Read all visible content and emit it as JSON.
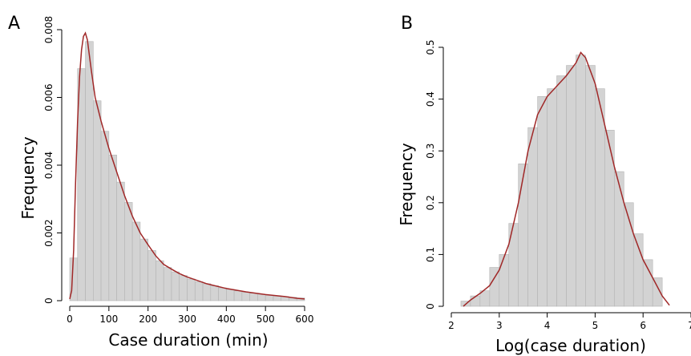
{
  "chart_data": [
    {
      "type": "bar",
      "panel_label": "A",
      "xlabel": "Case duration (min)",
      "ylabel": "Frequency",
      "xlim": [
        0,
        600
      ],
      "ylim": [
        0,
        0.008
      ],
      "x_ticks": [
        0,
        100,
        200,
        300,
        400,
        500,
        600
      ],
      "y_ticks": [
        0,
        0.002,
        0.004,
        0.006,
        0.008
      ],
      "y_tick_labels": [
        "0",
        "0.002",
        "0.004",
        "0.006",
        "0.008"
      ],
      "bin_width": 20,
      "bins_start": 0,
      "values": [
        0.00126,
        0.00685,
        0.00765,
        0.0059,
        0.005,
        0.0043,
        0.0035,
        0.0029,
        0.00232,
        0.00182,
        0.00148,
        0.00118,
        0.00098,
        0.00085,
        0.00074,
        0.00064,
        0.00056,
        0.0005,
        0.00044,
        0.00038,
        0.00033,
        0.00029,
        0.00025,
        0.00022,
        0.00019,
        0.00016,
        0.00014,
        0.00012,
        0.0001,
        8e-05
      ],
      "density_color": "#a02828",
      "density": [
        [
          0,
          5e-05
        ],
        [
          5,
          0.0003
        ],
        [
          10,
          0.0015
        ],
        [
          15,
          0.0035
        ],
        [
          20,
          0.0053
        ],
        [
          25,
          0.0066
        ],
        [
          30,
          0.0074
        ],
        [
          35,
          0.0078
        ],
        [
          40,
          0.0079
        ],
        [
          45,
          0.0077
        ],
        [
          55,
          0.0068
        ],
        [
          65,
          0.006
        ],
        [
          80,
          0.0053
        ],
        [
          100,
          0.0045
        ],
        [
          120,
          0.0038
        ],
        [
          140,
          0.0031
        ],
        [
          160,
          0.0025
        ],
        [
          180,
          0.002
        ],
        [
          200,
          0.00165
        ],
        [
          220,
          0.00132
        ],
        [
          240,
          0.00107
        ],
        [
          260,
          0.00093
        ],
        [
          280,
          0.0008
        ],
        [
          300,
          0.0007
        ],
        [
          350,
          0.0005
        ],
        [
          400,
          0.00036
        ],
        [
          450,
          0.00026
        ],
        [
          500,
          0.00018
        ],
        [
          550,
          0.00012
        ],
        [
          580,
          7e-05
        ],
        [
          600,
          5e-05
        ]
      ]
    },
    {
      "type": "bar",
      "panel_label": "B",
      "xlabel": "Log(case duration)",
      "ylabel": "Frequency",
      "xlim": [
        2,
        7
      ],
      "ylim": [
        0,
        0.5
      ],
      "x_ticks": [
        2,
        3,
        4,
        5,
        6,
        7
      ],
      "y_ticks": [
        0,
        0.1,
        0.2,
        0.3,
        0.4,
        0.5
      ],
      "y_tick_labels": [
        "0",
        "0.1",
        "0.2",
        "0.3",
        "0.4",
        "0.5"
      ],
      "bin_width": 0.2,
      "bins_start": 2.2,
      "values": [
        0.01,
        0.02,
        0.03,
        0.075,
        0.1,
        0.16,
        0.275,
        0.345,
        0.405,
        0.42,
        0.445,
        0.465,
        0.485,
        0.465,
        0.42,
        0.34,
        0.26,
        0.2,
        0.14,
        0.09,
        0.055
      ],
      "density_color": "#a02828",
      "density": [
        [
          2.25,
          0.0
        ],
        [
          2.4,
          0.012
        ],
        [
          2.6,
          0.025
        ],
        [
          2.8,
          0.04
        ],
        [
          3.0,
          0.07
        ],
        [
          3.2,
          0.12
        ],
        [
          3.4,
          0.2
        ],
        [
          3.6,
          0.3
        ],
        [
          3.8,
          0.37
        ],
        [
          4.0,
          0.405
        ],
        [
          4.2,
          0.425
        ],
        [
          4.4,
          0.445
        ],
        [
          4.6,
          0.47
        ],
        [
          4.7,
          0.49
        ],
        [
          4.8,
          0.48
        ],
        [
          5.0,
          0.43
        ],
        [
          5.2,
          0.35
        ],
        [
          5.4,
          0.27
        ],
        [
          5.6,
          0.2
        ],
        [
          5.8,
          0.14
        ],
        [
          6.0,
          0.09
        ],
        [
          6.2,
          0.055
        ],
        [
          6.4,
          0.02
        ],
        [
          6.55,
          0.002
        ]
      ]
    }
  ]
}
